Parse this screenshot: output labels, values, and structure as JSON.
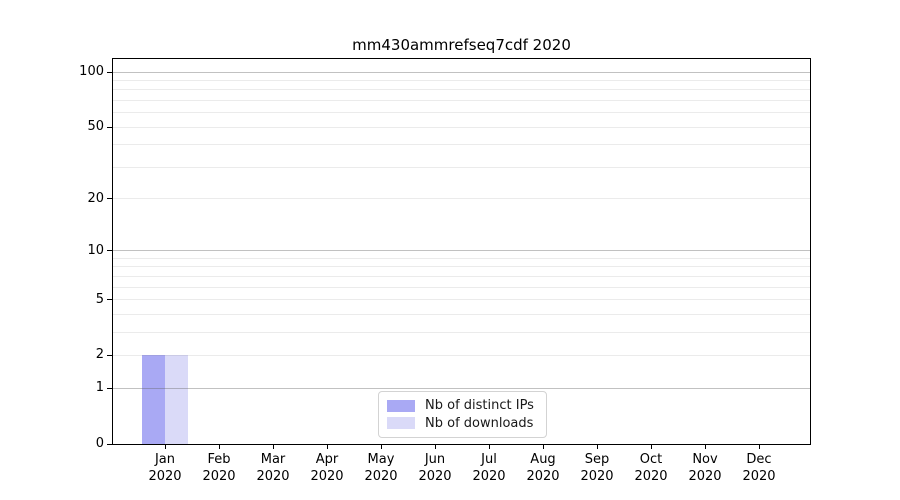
{
  "chart_data": {
    "type": "bar",
    "title": "mm430ammrefseq7cdf 2020",
    "categories": [
      "Jan 2020",
      "Feb 2020",
      "Mar 2020",
      "Apr 2020",
      "May 2020",
      "Jun 2020",
      "Jul 2020",
      "Aug 2020",
      "Sep 2020",
      "Oct 2020",
      "Nov 2020",
      "Dec 2020"
    ],
    "x_months": [
      "Jan",
      "Feb",
      "Mar",
      "Apr",
      "May",
      "Jun",
      "Jul",
      "Aug",
      "Sep",
      "Oct",
      "Nov",
      "Dec"
    ],
    "x_year": "2020",
    "series": [
      {
        "name": "Nb of distinct IPs",
        "color": "#a9a9f4",
        "values": [
          2,
          0,
          0,
          0,
          0,
          0,
          0,
          0,
          0,
          0,
          0,
          0
        ]
      },
      {
        "name": "Nb of downloads",
        "color": "#dadaf8",
        "values": [
          2,
          0,
          0,
          0,
          0,
          0,
          0,
          0,
          0,
          0,
          0,
          0
        ]
      }
    ],
    "yscale": "log1p",
    "ylim": [
      0,
      118
    ],
    "y_tick_labels": [
      0,
      1,
      2,
      5,
      10,
      20,
      50,
      100
    ],
    "y_major_gridlines": [
      1,
      10,
      100
    ],
    "y_minor_gridlines": [
      2,
      3,
      4,
      5,
      6,
      7,
      8,
      9,
      20,
      30,
      40,
      50,
      60,
      70,
      80,
      90
    ],
    "xlabel": "",
    "ylabel": "",
    "grid": true,
    "legend": {
      "position": "lower center",
      "entries": [
        "Nb of distinct IPs",
        "Nb of downloads"
      ]
    }
  },
  "colors": {
    "background": "#ffffff",
    "axis": "#000000",
    "text": "#191919",
    "major_gridline": "rgba(100,100,100,0.40)",
    "minor_gridline": "rgba(100,100,100,0.13)",
    "legend_border": "#d3d3d3",
    "bar_distinct_ips": "#a9a9f4",
    "bar_downloads": "#dadaf8"
  }
}
